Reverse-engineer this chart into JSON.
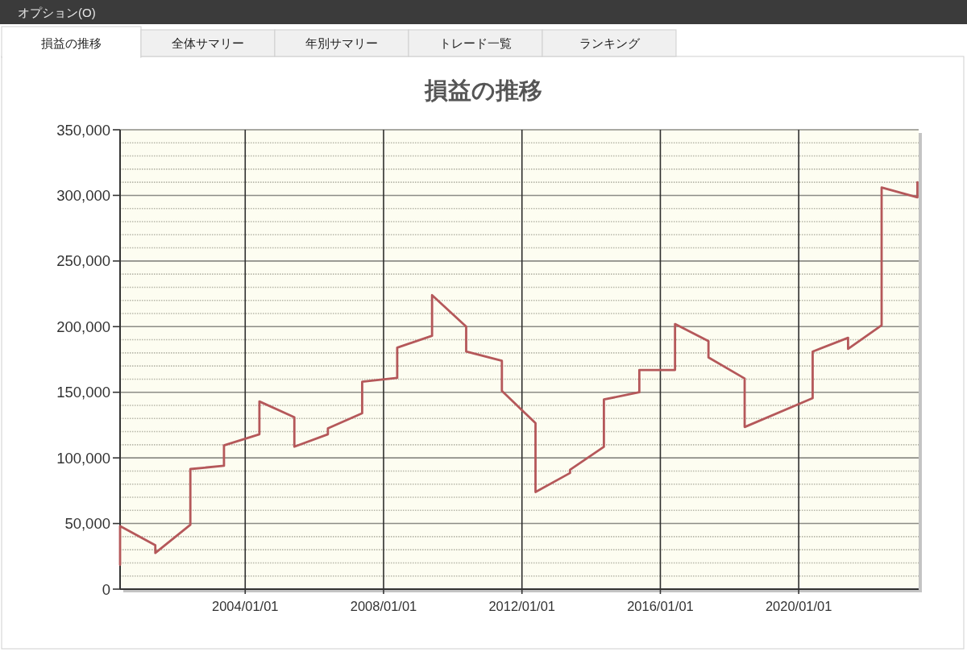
{
  "chart_data": {
    "type": "line",
    "title": "損益の推移",
    "annotations": [
      "オプション(O)",
      "損益の推移",
      "全体サマリー",
      "年別サマリー",
      "トレード一覧",
      "ランキング"
    ],
    "x": [
      "2000-05-20",
      "2000-05-20",
      "2001-05-27",
      "2001-05-27",
      "2002-06-01",
      "2002-06-01",
      "2003-05-22",
      "2003-05-22",
      "2004-05-30",
      "2004-05-30",
      "2005-06-03",
      "2005-06-03",
      "2006-05-23",
      "2006-05-23",
      "2007-05-20",
      "2007-05-20",
      "2008-05-24",
      "2008-05-24",
      "2009-05-27",
      "2009-05-27",
      "2010-05-22",
      "2010-05-22",
      "2011-06-03",
      "2011-06-03",
      "2012-05-23",
      "2012-05-23",
      "2013-05-23",
      "2013-05-23",
      "2014-05-15",
      "2014-05-15",
      "2015-05-24",
      "2015-05-24",
      "2016-06-04",
      "2016-06-04",
      "2017-05-23",
      "2017-05-23",
      "2018-06-09",
      "2018-06-09",
      "2020-05-27",
      "2020-05-27",
      "2021-06-05",
      "2021-06-05",
      "2022-05-25",
      "2022-05-25",
      "2023-06-07",
      "2023-06-07"
    ],
    "series": [
      {
        "color": "#b5585a",
        "values": [
          18500,
          48000,
          33500,
          27500,
          49000,
          91500,
          94000,
          109500,
          118000,
          143000,
          131000,
          108500,
          118000,
          122500,
          134000,
          158000,
          161000,
          184000,
          193000,
          224000,
          200000,
          181000,
          174000,
          151000,
          126500,
          74000,
          88500,
          91000,
          108500,
          144500,
          150000,
          167000,
          167000,
          202000,
          189000,
          176500,
          160500,
          123500,
          145500,
          181000,
          191500,
          183000,
          201000,
          306000,
          298500,
          310000
        ]
      }
    ],
    "xlim": [
      "2000-05-20",
      "2023-06-20"
    ],
    "ylim": [
      0,
      350000
    ],
    "xticks": [
      {
        "value": "2004-01-01",
        "label": "2004/01/01"
      },
      {
        "value": "2008-01-01",
        "label": "2008/01/01"
      },
      {
        "value": "2012-01-01",
        "label": "2012/01/01"
      },
      {
        "value": "2016-01-01",
        "label": "2016/01/01"
      },
      {
        "value": "2020-01-01",
        "label": "2020/01/01"
      }
    ],
    "yticks": [
      0,
      {
        "value": 10000,
        "label": null
      },
      {
        "value": 20000,
        "label": null
      },
      {
        "value": 30000,
        "label": null
      },
      {
        "value": 40000,
        "label": null
      },
      {
        "value": 50000,
        "label": "50,000"
      },
      {
        "value": 60000,
        "label": null
      },
      {
        "value": 70000,
        "label": null
      },
      {
        "value": 80000,
        "label": null
      },
      {
        "value": 90000,
        "label": null
      },
      {
        "value": 100000,
        "label": "100,000"
      },
      {
        "value": 110000,
        "label": null
      },
      {
        "value": 120000,
        "label": null
      },
      {
        "value": 130000,
        "label": null
      },
      {
        "value": 140000,
        "label": null
      },
      {
        "value": 150000,
        "label": "150,000"
      },
      {
        "value": 160000,
        "label": null
      },
      {
        "value": 170000,
        "label": null
      },
      {
        "value": 180000,
        "label": null
      },
      {
        "value": 190000,
        "label": null
      },
      {
        "value": 200000,
        "label": "200,000"
      },
      {
        "value": 210000,
        "label": null
      },
      {
        "value": 220000,
        "label": null
      },
      {
        "value": 230000,
        "label": null
      },
      {
        "value": 240000,
        "label": null
      },
      {
        "value": 250000,
        "label": "250,000"
      },
      {
        "value": 260000,
        "label": null
      },
      {
        "value": 270000,
        "label": null
      },
      {
        "value": 280000,
        "label": null
      },
      {
        "value": 290000,
        "label": null
      },
      {
        "value": 300000,
        "label": "300,000"
      },
      {
        "value": 310000,
        "label": null
      },
      {
        "value": 320000,
        "label": null
      },
      {
        "value": 330000,
        "label": null
      },
      {
        "value": 340000,
        "label": null
      },
      {
        "value": 350000,
        "label": "350,000"
      }
    ],
    "grid": true
  }
}
